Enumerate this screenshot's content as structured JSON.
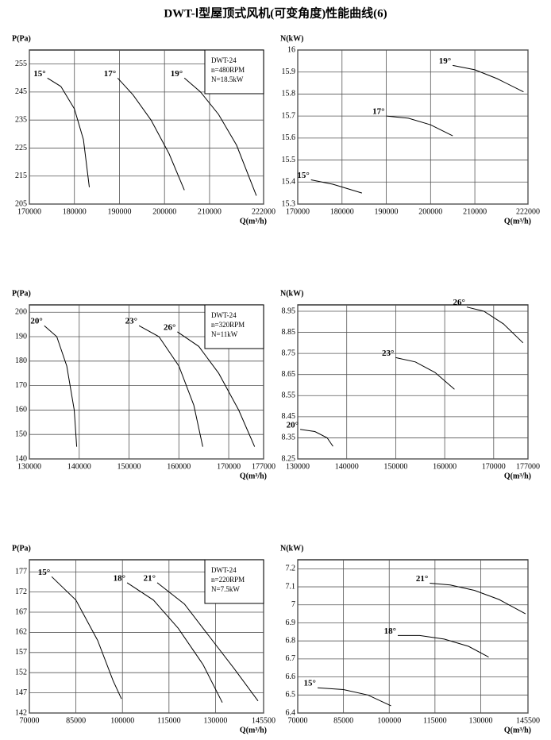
{
  "title": "DWT-Ⅰ型屋顶式风机(可变角度)性能曲线(6)",
  "chart_data": [
    {
      "type": "line",
      "ylabel": "P(Pa)",
      "xlabel": "Q(m³/h)",
      "xlim": [
        170000,
        222000
      ],
      "ylim": [
        205,
        260
      ],
      "xticks": [
        170000,
        180000,
        190000,
        200000,
        210000,
        222000
      ],
      "yticks": [
        205,
        215,
        225,
        235,
        245,
        255
      ],
      "grid": true,
      "color": "#000000",
      "annotations": [
        "DWT-24",
        "n=480RPM",
        "N=18.5kW"
      ],
      "series": [
        {
          "name": "15°",
          "x": [
            174000,
            177000,
            180000,
            182000,
            183300
          ],
          "values": [
            250,
            247,
            239,
            228,
            211
          ]
        },
        {
          "name": "17°",
          "x": [
            189600,
            193000,
            197000,
            201000,
            204400
          ],
          "values": [
            250,
            244,
            235,
            223,
            210
          ]
        },
        {
          "name": "19°",
          "x": [
            204400,
            208000,
            212000,
            216000,
            220400
          ],
          "values": [
            250,
            245,
            237,
            226,
            208
          ]
        }
      ]
    },
    {
      "type": "line",
      "ylabel": "N(kW)",
      "xlabel": "Q(m³/h)",
      "xlim": [
        170000,
        222000
      ],
      "ylim": [
        15.3,
        16
      ],
      "xticks": [
        170000,
        180000,
        190000,
        200000,
        210000,
        222000
      ],
      "yticks": [
        15.3,
        15.4,
        15.5,
        15.6,
        15.7,
        15.8,
        15.9,
        16
      ],
      "grid": true,
      "color": "#000000",
      "series": [
        {
          "name": "15°",
          "x": [
            173000,
            178000,
            184500
          ],
          "values": [
            15.41,
            15.39,
            15.35
          ]
        },
        {
          "name": "17°",
          "x": [
            190000,
            195000,
            200000,
            205000
          ],
          "values": [
            15.7,
            15.69,
            15.66,
            15.61
          ]
        },
        {
          "name": "19°",
          "x": [
            205000,
            210000,
            215000,
            221000
          ],
          "values": [
            15.93,
            15.91,
            15.87,
            15.81
          ]
        }
      ]
    },
    {
      "type": "line",
      "ylabel": "P(Pa)",
      "xlabel": "Q(m³/h)",
      "xlim": [
        130000,
        177000
      ],
      "ylim": [
        140,
        203
      ],
      "xticks": [
        130000,
        140000,
        150000,
        160000,
        170000,
        177000
      ],
      "yticks": [
        140,
        150,
        160,
        170,
        180,
        190,
        200
      ],
      "grid": true,
      "color": "#000000",
      "annotations": [
        "DWT-24",
        "n=320RPM",
        "N=11kW"
      ],
      "series": [
        {
          "name": "20°",
          "x": [
            133000,
            135500,
            137500,
            139000,
            139500
          ],
          "values": [
            194.5,
            190,
            178,
            160,
            145
          ]
        },
        {
          "name": "23°",
          "x": [
            152000,
            156000,
            160000,
            163000,
            164800
          ],
          "values": [
            194.5,
            190,
            178,
            162,
            145
          ]
        },
        {
          "name": "26°",
          "x": [
            159700,
            164000,
            168000,
            172000,
            175200
          ],
          "values": [
            192,
            186,
            175,
            160,
            145
          ]
        }
      ]
    },
    {
      "type": "line",
      "ylabel": "N(kW)",
      "xlabel": "Q(m³/h)",
      "xlim": [
        130000,
        177000
      ],
      "ylim": [
        8.25,
        8.98
      ],
      "xticks": [
        130000,
        140000,
        150000,
        160000,
        170000,
        177000
      ],
      "yticks": [
        8.25,
        8.35,
        8.45,
        8.55,
        8.65,
        8.75,
        8.85,
        8.95
      ],
      "grid": true,
      "color": "#000000",
      "series": [
        {
          "name": "20°",
          "x": [
            130500,
            133500,
            136000,
            137200
          ],
          "values": [
            8.39,
            8.38,
            8.35,
            8.31
          ]
        },
        {
          "name": "23°",
          "x": [
            150000,
            154000,
            158000,
            162000
          ],
          "values": [
            8.73,
            8.71,
            8.66,
            8.58
          ]
        },
        {
          "name": "26°",
          "x": [
            164500,
            168000,
            172000,
            176000
          ],
          "values": [
            8.97,
            8.95,
            8.89,
            8.8
          ]
        }
      ]
    },
    {
      "type": "line",
      "ylabel": "P(Pa)",
      "xlabel": "Q(m³/h)",
      "xlim": [
        70000,
        145500
      ],
      "ylim": [
        142,
        180
      ],
      "xticks": [
        70000,
        85000,
        100000,
        115000,
        130000,
        145500
      ],
      "yticks": [
        142,
        147,
        152,
        157,
        162,
        167,
        172,
        177
      ],
      "grid": true,
      "color": "#000000",
      "annotations": [
        "DWT-24",
        "n=220RPM",
        "N=7.5kW"
      ],
      "series": [
        {
          "name": "15°",
          "x": [
            77200,
            85000,
            92000,
            97000,
            99700
          ],
          "values": [
            175.8,
            170,
            160,
            150,
            145.5
          ]
        },
        {
          "name": "18°",
          "x": [
            101500,
            110000,
            118000,
            126000,
            132200
          ],
          "values": [
            174.3,
            170,
            163,
            154,
            144.6
          ]
        },
        {
          "name": "21°",
          "x": [
            111200,
            120000,
            128000,
            136000,
            143700
          ],
          "values": [
            174.3,
            169,
            161,
            153,
            145
          ]
        }
      ]
    },
    {
      "type": "line",
      "ylabel": "N(kW)",
      "xlabel": "Q(m³/h)",
      "xlim": [
        70000,
        145500
      ],
      "ylim": [
        6.4,
        7.25
      ],
      "xticks": [
        70000,
        85000,
        100000,
        115000,
        130000,
        145500
      ],
      "yticks": [
        6.4,
        6.5,
        6.6,
        6.7,
        6.8,
        6.9,
        7,
        7.1,
        7.2
      ],
      "grid": true,
      "color": "#000000",
      "series": [
        {
          "name": "15°",
          "x": [
            76500,
            85000,
            93000,
            100600
          ],
          "values": [
            6.54,
            6.53,
            6.5,
            6.44
          ]
        },
        {
          "name": "18°",
          "x": [
            102800,
            110000,
            118000,
            126000,
            132600
          ],
          "values": [
            6.83,
            6.83,
            6.81,
            6.77,
            6.71
          ]
        },
        {
          "name": "21°",
          "x": [
            113300,
            120000,
            128000,
            136000,
            144700
          ],
          "values": [
            7.12,
            7.11,
            7.08,
            7.03,
            6.95
          ]
        }
      ]
    }
  ]
}
